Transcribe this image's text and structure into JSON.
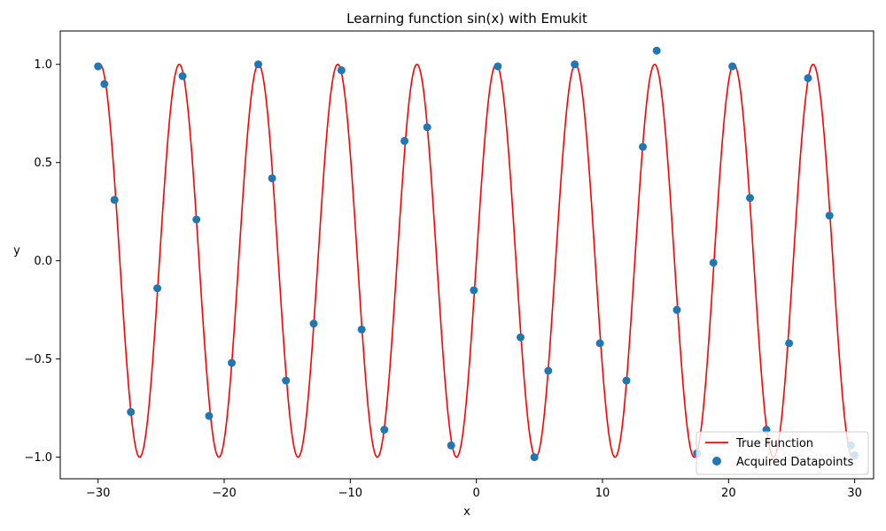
{
  "chart_data": {
    "type": "line",
    "title": "Learning function sin(x) with Emukit",
    "xlabel": "x",
    "ylabel": "y",
    "xlim": [
      -33.0,
      31.5
    ],
    "ylim": [
      -1.11,
      1.17
    ],
    "x_ticks": [
      -30,
      -20,
      -10,
      0,
      10,
      20,
      30
    ],
    "x_tick_labels": [
      "−30",
      "−20",
      "−10",
      "0",
      "10",
      "20",
      "30"
    ],
    "y_ticks": [
      -1.0,
      -0.5,
      0.0,
      0.5,
      1.0
    ],
    "y_tick_labels": [
      "−1.0",
      "−0.5",
      "0.0",
      "0.5",
      "1.0"
    ],
    "grid": false,
    "legend_position": "lower-right",
    "series": [
      {
        "name": "True Function",
        "kind": "line",
        "color": "#ff0000",
        "function": "sin(x)",
        "x_range": [
          -30,
          30
        ]
      },
      {
        "name": "Acquired Datapoints",
        "kind": "scatter",
        "color": "#1f77b4",
        "points": [
          [
            -30.0,
            0.99
          ],
          [
            -29.5,
            0.9
          ],
          [
            -28.7,
            0.31
          ],
          [
            -27.4,
            -0.77
          ],
          [
            -25.3,
            -0.14
          ],
          [
            -23.3,
            0.94
          ],
          [
            -22.2,
            0.21
          ],
          [
            -21.2,
            -0.79
          ],
          [
            -19.4,
            -0.52
          ],
          [
            -17.3,
            1.0
          ],
          [
            -16.2,
            0.42
          ],
          [
            -15.1,
            -0.61
          ],
          [
            -12.9,
            -0.32
          ],
          [
            -10.7,
            0.97
          ],
          [
            -9.1,
            -0.35
          ],
          [
            -7.3,
            -0.86
          ],
          [
            -5.7,
            0.61
          ],
          [
            -3.9,
            0.68
          ],
          [
            -2.0,
            -0.94
          ],
          [
            -0.2,
            -0.15
          ],
          [
            1.7,
            0.99
          ],
          [
            3.5,
            -0.39
          ],
          [
            4.6,
            -1.0
          ],
          [
            5.7,
            -0.56
          ],
          [
            7.8,
            1.0
          ],
          [
            9.8,
            -0.42
          ],
          [
            11.9,
            -0.61
          ],
          [
            13.2,
            0.58
          ],
          [
            14.3,
            1.07
          ],
          [
            15.9,
            -0.25
          ],
          [
            17.5,
            -0.98
          ],
          [
            18.8,
            -0.01
          ],
          [
            20.3,
            0.99
          ],
          [
            21.7,
            0.32
          ],
          [
            23.0,
            -0.86
          ],
          [
            24.8,
            -0.42
          ],
          [
            26.3,
            0.93
          ],
          [
            28.0,
            0.23
          ],
          [
            29.7,
            -0.94
          ],
          [
            30.0,
            -0.99
          ]
        ]
      }
    ]
  }
}
